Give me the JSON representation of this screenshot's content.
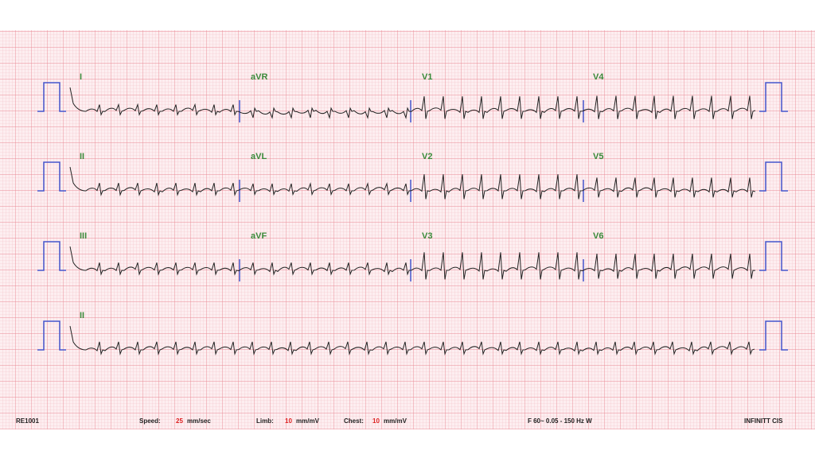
{
  "leads": [
    [
      "I",
      "aVR",
      "V1",
      "V4"
    ],
    [
      "II",
      "aVL",
      "V2",
      "V5"
    ],
    [
      "III",
      "aVF",
      "V3",
      "V6"
    ],
    [
      "II"
    ]
  ],
  "footer": {
    "id": "RE1001",
    "speed_label": "Speed:",
    "speed_value": "25",
    "speed_unit": "mm/sec",
    "limb_label": "Limb:",
    "limb_value": "10",
    "limb_unit": "mm/mV",
    "chest_label": "Chest:",
    "chest_value": "10",
    "chest_unit": "mm/mV",
    "filter": "F 60~  0.05 - 150 Hz W",
    "device": "INFINITT CIS"
  }
}
